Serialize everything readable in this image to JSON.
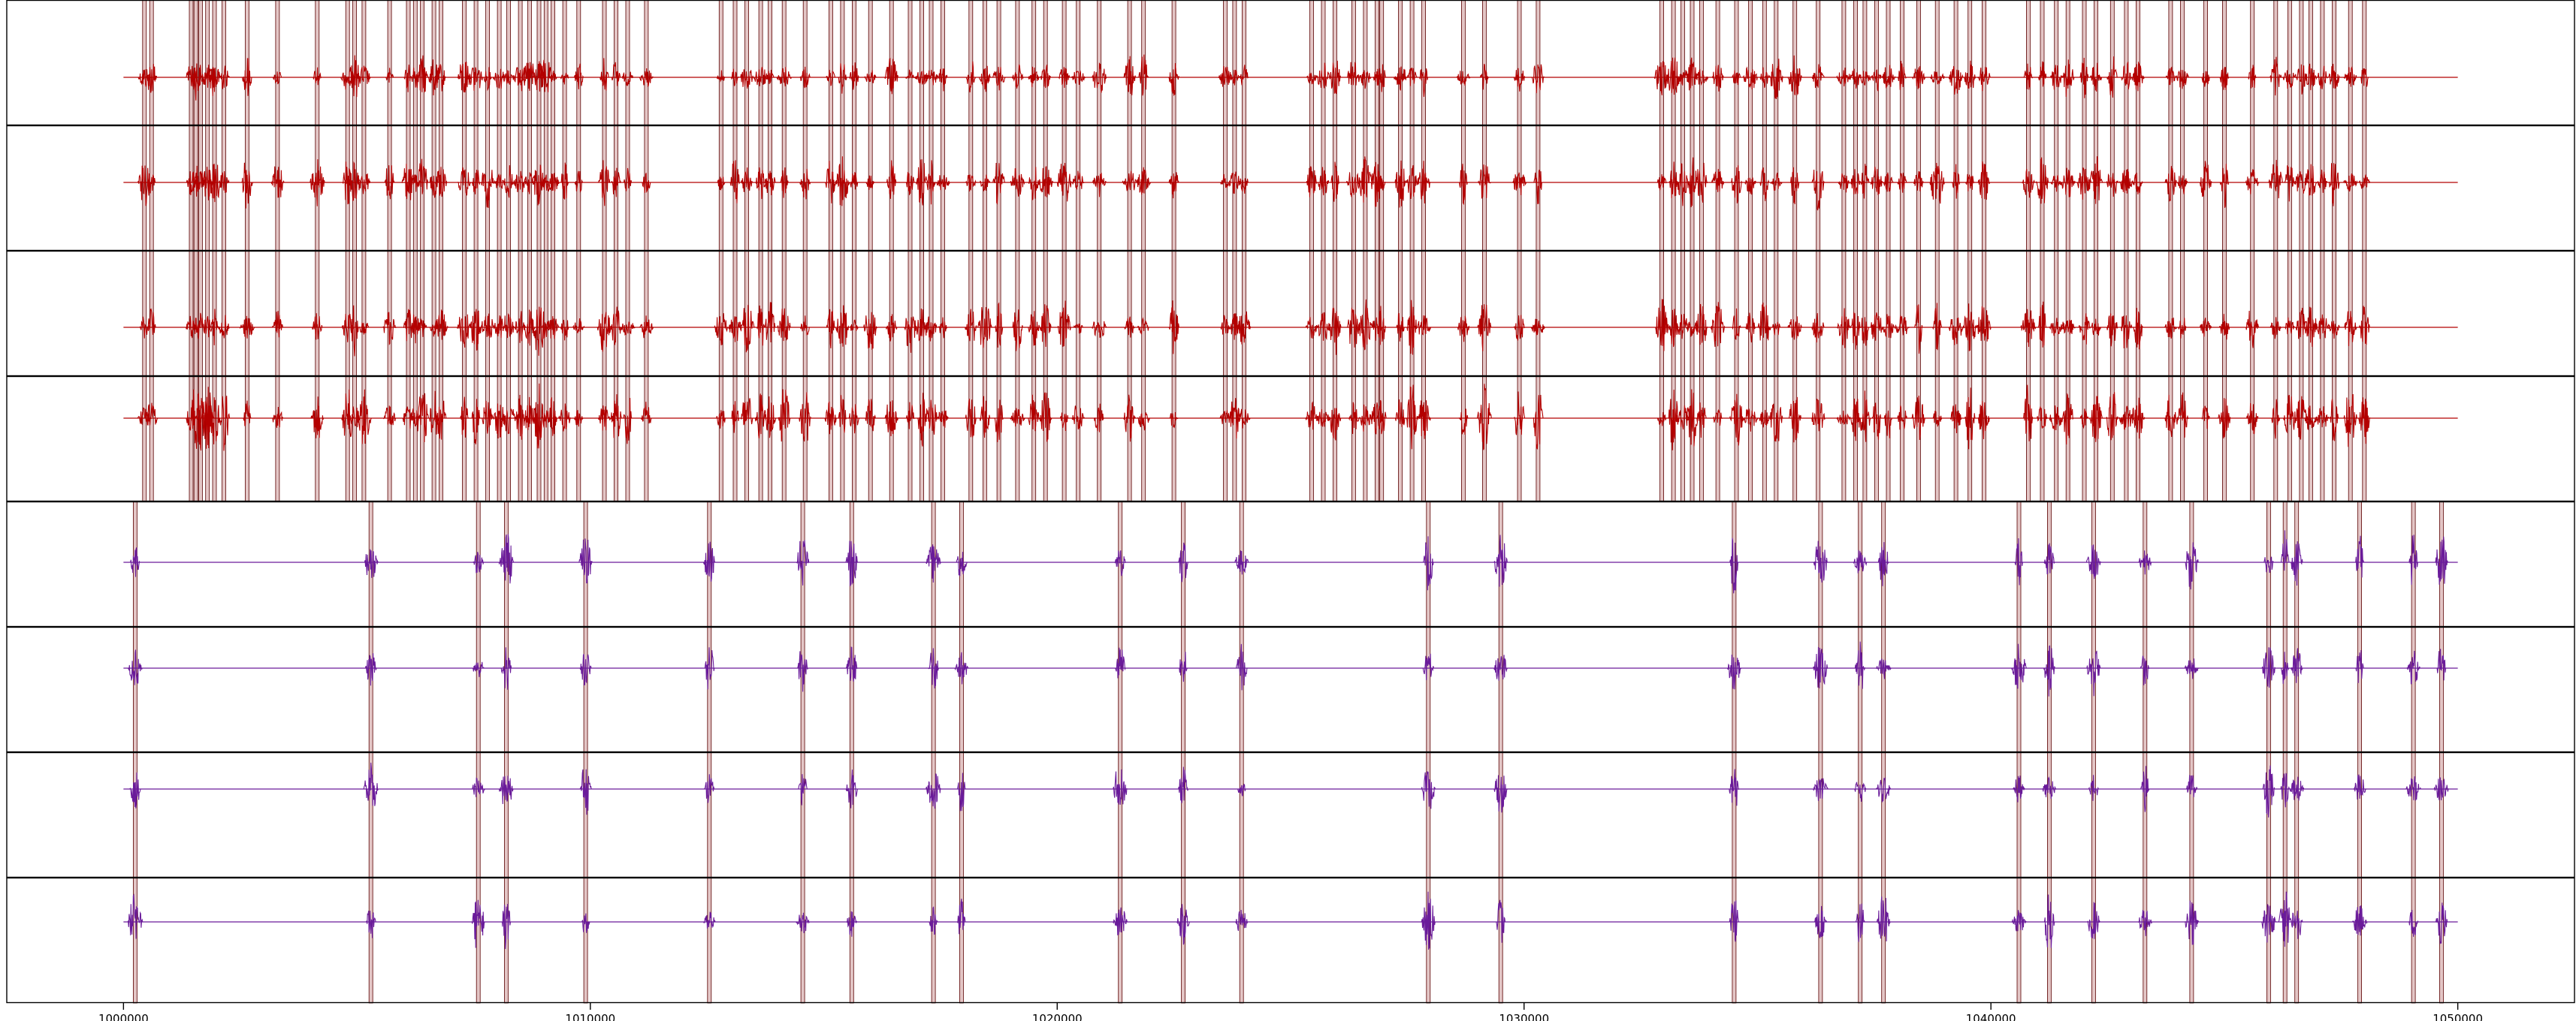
{
  "chart_data": {
    "type": "line",
    "title": "",
    "xlabel": "",
    "ylabel": "",
    "xlim": [
      997500,
      1052500
    ],
    "x_ticks": [
      "1000000",
      "1010000",
      "1020000",
      "1030000",
      "1040000",
      "1050000"
    ],
    "x_tick_values": [
      1000000,
      1010000,
      1020000,
      1030000,
      1040000,
      1050000
    ],
    "grid": false,
    "legend": "none",
    "panels": 8,
    "trace_range": [
      1000000,
      1050000
    ],
    "groups": [
      {
        "color": "#b30000",
        "span_color": "#c08080",
        "panel_indices": [
          0,
          1,
          2,
          3
        ],
        "event_times": [
          1000450,
          1000600,
          1001450,
          1001550,
          1001650,
          1001800,
          1001950,
          1002150,
          1002650,
          1003300,
          1004150,
          1004800,
          1004950,
          1005150,
          1005700,
          1006100,
          1006250,
          1006400,
          1006650,
          1006800,
          1007300,
          1007550,
          1007800,
          1008050,
          1008250,
          1008500,
          1008700,
          1008900,
          1009050,
          1009200,
          1009450,
          1009750,
          1010300,
          1010550,
          1010800,
          1011200,
          1012800,
          1013100,
          1013350,
          1013650,
          1013850,
          1014150,
          1014600,
          1015150,
          1015400,
          1015650,
          1016000,
          1016450,
          1016850,
          1017100,
          1017300,
          1017550,
          1018150,
          1018450,
          1018750,
          1019150,
          1019500,
          1019750,
          1020150,
          1020450,
          1020900,
          1021550,
          1021850,
          1022500,
          1023600,
          1023800,
          1024000,
          1025450,
          1025700,
          1025950,
          1026350,
          1026600,
          1026850,
          1026950,
          1027350,
          1027600,
          1027850,
          1028700,
          1029150,
          1029900,
          1030300,
          1032950,
          1033200,
          1033400,
          1033600,
          1033800,
          1034150,
          1034550,
          1034850,
          1035150,
          1035400,
          1035800,
          1036300,
          1036850,
          1037100,
          1037300,
          1037550,
          1037800,
          1038100,
          1038450,
          1038850,
          1039250,
          1039550,
          1039850,
          1040800,
          1041100,
          1041400,
          1041650,
          1042000,
          1042250,
          1042600,
          1042900,
          1043150,
          1043850,
          1044100,
          1044600,
          1045000,
          1045600,
          1046100,
          1046400,
          1046650,
          1046850,
          1047100,
          1047350,
          1047700,
          1048000
        ]
      },
      {
        "color": "#6a1b9a",
        "span_color": "#c08080",
        "panel_indices": [
          4,
          5,
          6,
          7
        ],
        "event_times": [
          1000250,
          1005300,
          1007600,
          1008200,
          1009900,
          1012550,
          1014550,
          1015600,
          1017350,
          1017950,
          1021350,
          1022700,
          1023950,
          1027950,
          1029500,
          1034500,
          1036350,
          1037200,
          1037700,
          1040600,
          1041250,
          1042200,
          1043300,
          1044300,
          1045950,
          1046300,
          1046550,
          1047900,
          1049050,
          1049650
        ]
      }
    ]
  }
}
